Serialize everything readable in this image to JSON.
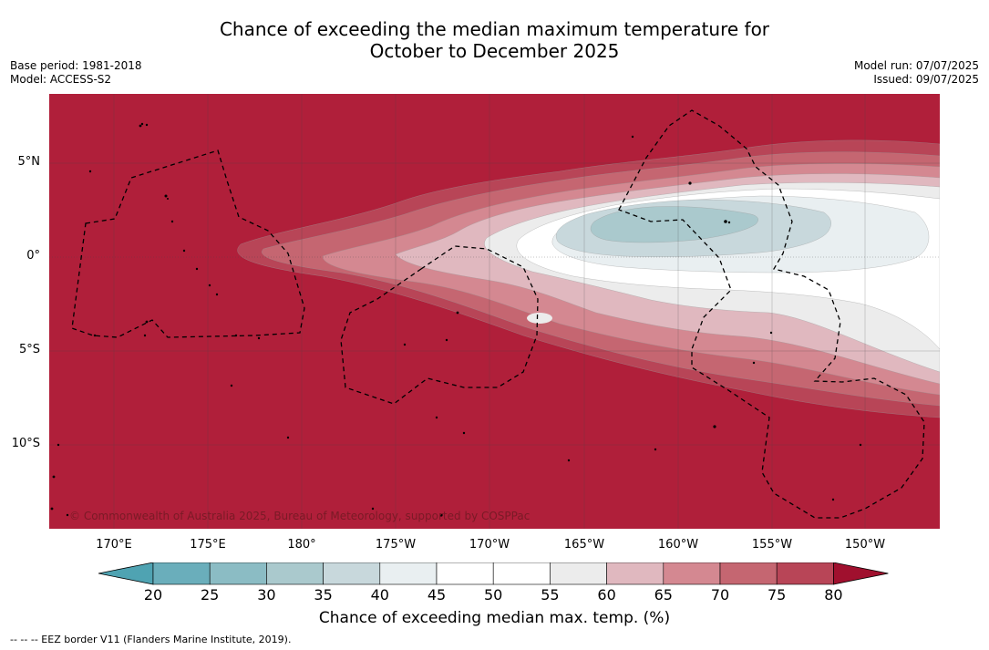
{
  "header": {
    "title_line1": "Chance of exceeding the median maximum temperature for",
    "title_line2": "October to December 2025",
    "base_period": "Base period: 1981-2018",
    "model": "Model: ACCESS-S2",
    "model_run": "Model run: 07/07/2025",
    "issued": "Issued: 09/07/2025"
  },
  "map": {
    "copyright": "© Commonwealth of Australia 2025, Bureau of Meteorology, supported by COSPPac",
    "lat_ticks": [
      "5°N",
      "0°",
      "5°S",
      "10°S"
    ],
    "lon_ticks": [
      "170°E",
      "175°E",
      "180°",
      "175°W",
      "170°W",
      "165°W",
      "160°W",
      "155°W",
      "150°W"
    ],
    "colors": {
      "c20_25": "#6aaebb",
      "c25_30": "#8bbcc4",
      "c30_35": "#aac9cd",
      "c35_40": "#c8d8dc",
      "c40_45": "#e9eff1",
      "c45_55": "#ffffff",
      "c55_60": "#ececec",
      "c60_65": "#e0b8bf",
      "c65_70": "#d48891",
      "c70_75": "#c56671",
      "c75_80": "#b84557",
      "c80": "#b01f3a"
    }
  },
  "colorbar": {
    "labels": [
      "20",
      "25",
      "30",
      "35",
      "40",
      "45",
      "50",
      "55",
      "60",
      "65",
      "70",
      "75",
      "80"
    ],
    "title": "Chance of exceeding median max. temp. (%)"
  },
  "footer": {
    "legend": "--  --  -- EEZ border V11 (Flanders Marine Institute, 2019)."
  }
}
